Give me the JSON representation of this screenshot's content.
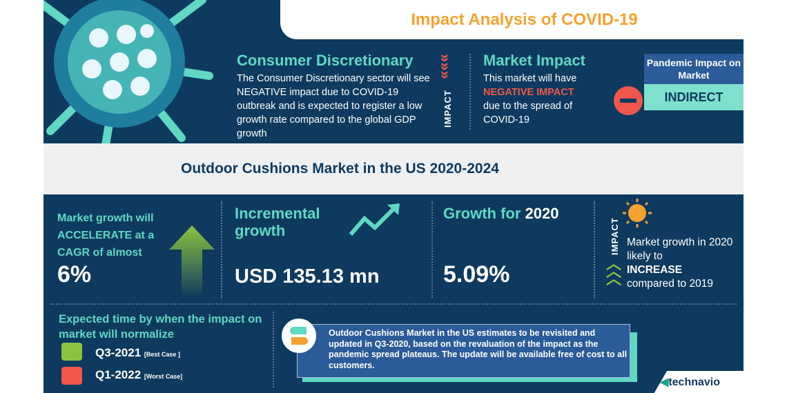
{
  "header": {
    "title": "Impact Analysis of COVID-19"
  },
  "sector": {
    "title": "Consumer Discretionary",
    "body": "The Consumer Discretionary sector will see NEGATIVE impact due to COVID-19 outbreak and is expected to register a low growth rate compared to the global GDP growth",
    "impact_label": "IMPACT"
  },
  "market_impact": {
    "title": "Market Impact",
    "line1": "This market will have",
    "highlight": "NEGATIVE IMPACT",
    "line2": "due to the spread of COVID-19"
  },
  "pandemic": {
    "label": "Pandemic Impact on Market",
    "value": "INDIRECT"
  },
  "report": {
    "title": "Outdoor Cushions Market in the US 2020-2024"
  },
  "stats": {
    "cagr": {
      "text": "Market growth will ACCELERATE at a CAGR of almost",
      "value": "6%"
    },
    "incremental": {
      "title": "Incremental growth",
      "value": "USD 135.13 mn"
    },
    "growth2020": {
      "title_prefix": "Growth for ",
      "title_year": "2020",
      "value": "5.09%"
    },
    "impact": {
      "label": "IMPACT",
      "line1": "Market growth in 2020 likely to",
      "highlight": "INCREASE",
      "line2": "compared to 2019"
    }
  },
  "normalize": {
    "title": "Expected time by when the impact on market will normalize",
    "best": {
      "date": "Q3-2021",
      "tag": "[Best Case ]"
    },
    "worst": {
      "date": "Q1-2022",
      "tag": "[Worst Case]"
    }
  },
  "update_note": "Outdoor Cushions Market in the US estimates to be revisited and updated in Q3-2020, based on the revaluation of the impact as the pandemic spread plateaus. The update will be available free of cost to all customers.",
  "logo": "technavio",
  "colors": {
    "navy": "#0e3a5f",
    "teal": "#5fd8c4",
    "orange": "#f5a130",
    "red": "#f0574a",
    "green": "#8bc53f"
  }
}
